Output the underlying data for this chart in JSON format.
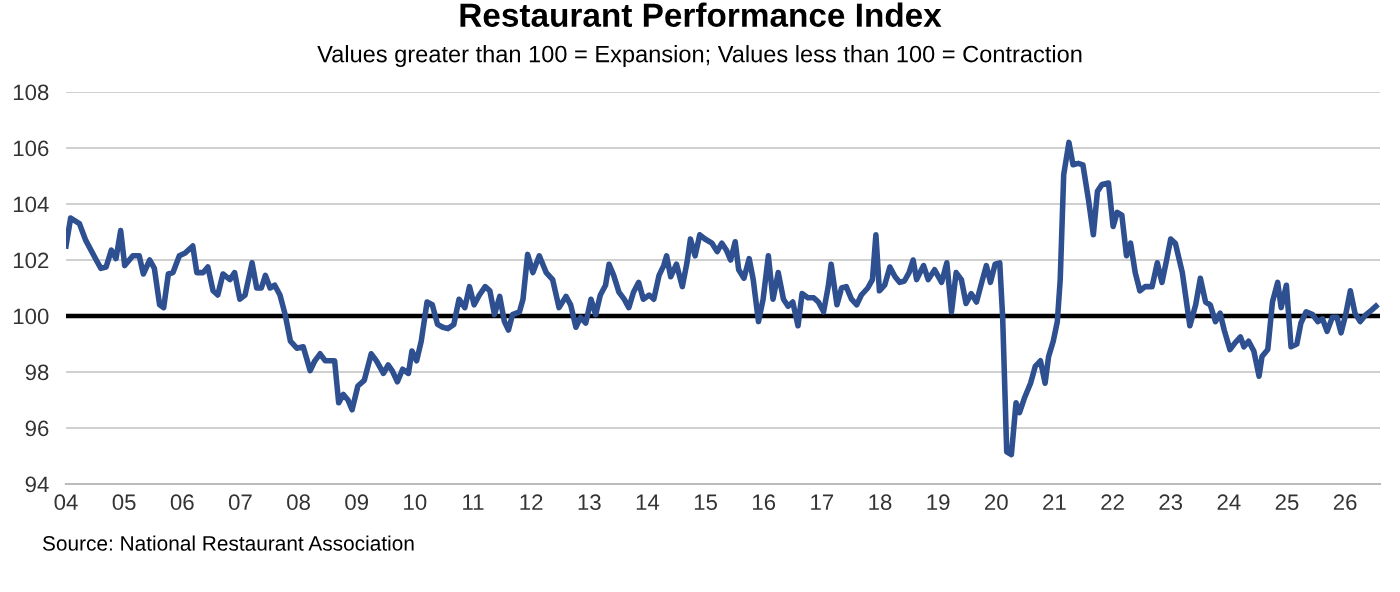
{
  "chart_data": {
    "type": "line",
    "title": "Restaurant Performance Index",
    "subtitle": "Values greater than 100 = Expansion; Values less than 100 = Contraction",
    "series": [
      {
        "color": "#2e5090",
        "x": [
          2004.0,
          2004.08,
          2004.23,
          2004.34,
          2004.52,
          2004.6,
          2004.69,
          2004.78,
          2004.86,
          2004.94,
          2005.01,
          2005.15,
          2005.26,
          2005.33,
          2005.44,
          2005.52,
          2005.61,
          2005.68,
          2005.76,
          2005.84,
          2005.95,
          2006.05,
          2006.18,
          2006.25,
          2006.36,
          2006.44,
          2006.53,
          2006.61,
          2006.7,
          2006.82,
          2006.9,
          2006.99,
          2007.08,
          2007.2,
          2007.28,
          2007.36,
          2007.43,
          2007.51,
          2007.59,
          2007.68,
          2007.77,
          2007.86,
          2007.97,
          2008.08,
          2008.2,
          2008.28,
          2008.37,
          2008.46,
          2008.55,
          2008.62,
          2008.69,
          2008.77,
          2008.85,
          2008.92,
          2009.02,
          2009.13,
          2009.25,
          2009.34,
          2009.46,
          2009.54,
          2009.61,
          2009.7,
          2009.79,
          2009.89,
          2009.95,
          2010.03,
          2010.11,
          2010.21,
          2010.3,
          2010.39,
          2010.48,
          2010.57,
          2010.67,
          2010.76,
          2010.86,
          2010.94,
          2011.02,
          2011.11,
          2011.21,
          2011.29,
          2011.37,
          2011.46,
          2011.54,
          2011.61,
          2011.68,
          2011.8,
          2011.86,
          2011.94,
          2012.03,
          2012.14,
          2012.26,
          2012.37,
          2012.48,
          2012.6,
          2012.68,
          2012.77,
          2012.85,
          2012.94,
          2013.03,
          2013.11,
          2013.19,
          2013.28,
          2013.34,
          2013.42,
          2013.51,
          2013.6,
          2013.68,
          2013.76,
          2013.85,
          2013.93,
          2014.03,
          2014.11,
          2014.2,
          2014.28,
          2014.33,
          2014.4,
          2014.5,
          2014.6,
          2014.68,
          2014.74,
          2014.82,
          2014.9,
          2014.99,
          2015.11,
          2015.2,
          2015.28,
          2015.36,
          2015.43,
          2015.51,
          2015.57,
          2015.66,
          2015.75,
          2015.82,
          2015.91,
          2015.99,
          2016.08,
          2016.16,
          2016.25,
          2016.34,
          2016.42,
          2016.5,
          2016.59,
          2016.66,
          2016.76,
          2016.86,
          2016.94,
          2017.03,
          2017.11,
          2017.16,
          2017.26,
          2017.34,
          2017.42,
          2017.51,
          2017.6,
          2017.68,
          2017.79,
          2017.87,
          2017.93,
          2017.99,
          2018.08,
          2018.17,
          2018.26,
          2018.34,
          2018.42,
          2018.5,
          2018.57,
          2018.63,
          2018.75,
          2018.83,
          2018.94,
          2019.06,
          2019.15,
          2019.23,
          2019.31,
          2019.4,
          2019.48,
          2019.57,
          2019.66,
          2019.75,
          2019.83,
          2019.9,
          2019.98,
          2020.06,
          2020.11,
          2020.18,
          2020.26,
          2020.34,
          2020.4,
          2020.49,
          2020.59,
          2020.67,
          2020.76,
          2020.84,
          2020.9,
          2020.98,
          2021.05,
          2021.1,
          2021.16,
          2021.25,
          2021.32,
          2021.41,
          2021.49,
          2021.59,
          2021.67,
          2021.74,
          2021.82,
          2021.93,
          2022.01,
          2022.08,
          2022.16,
          2022.24,
          2022.31,
          2022.39,
          2022.47,
          2022.56,
          2022.68,
          2022.77,
          2022.85,
          2022.93,
          2023.0,
          2023.08,
          2023.2,
          2023.33,
          2023.43,
          2023.51,
          2023.6,
          2023.68,
          2023.77,
          2023.85,
          2023.92,
          2024.02,
          2024.11,
          2024.2,
          2024.26,
          2024.34,
          2024.43,
          2024.52,
          2024.57,
          2024.67,
          2024.75,
          2024.84,
          2024.9,
          2024.99,
          2025.07,
          2025.17,
          2025.24,
          2025.33,
          2025.44,
          2025.53,
          2025.61,
          2025.69,
          2025.78,
          2025.86,
          2025.93,
          2026.01,
          2026.09,
          2026.17,
          2026.26,
          2026.36,
          2026.45,
          2026.53
        ],
        "values": [
          102.5,
          103.5,
          103.3,
          102.7,
          102.0,
          101.7,
          101.75,
          102.35,
          102.05,
          103.05,
          101.8,
          102.15,
          102.15,
          101.5,
          102.0,
          101.7,
          100.4,
          100.3,
          101.5,
          101.55,
          102.15,
          102.25,
          102.5,
          101.55,
          101.55,
          101.75,
          100.9,
          100.75,
          101.5,
          101.3,
          101.55,
          100.6,
          100.75,
          101.9,
          101.0,
          101.0,
          101.45,
          101.0,
          101.1,
          100.75,
          100.05,
          99.1,
          98.85,
          98.9,
          98.05,
          98.4,
          98.65,
          98.4,
          98.4,
          98.4,
          96.9,
          97.2,
          97.0,
          96.65,
          97.5,
          97.7,
          98.65,
          98.4,
          97.95,
          98.25,
          98.05,
          97.65,
          98.1,
          97.95,
          98.75,
          98.4,
          99.1,
          100.5,
          100.4,
          99.7,
          99.6,
          99.55,
          99.7,
          100.6,
          100.3,
          101.05,
          100.4,
          100.75,
          101.05,
          100.9,
          100.05,
          100.7,
          99.8,
          99.5,
          100.05,
          100.15,
          100.6,
          102.2,
          101.55,
          102.15,
          101.55,
          101.3,
          100.3,
          100.7,
          100.4,
          99.6,
          99.95,
          99.75,
          100.6,
          100.05,
          100.75,
          101.1,
          101.85,
          101.45,
          100.85,
          100.6,
          100.3,
          100.85,
          101.2,
          100.6,
          100.75,
          100.6,
          101.45,
          101.8,
          102.15,
          101.4,
          101.85,
          101.05,
          101.9,
          102.75,
          102.15,
          102.9,
          102.75,
          102.6,
          102.3,
          102.6,
          102.35,
          102.0,
          102.65,
          101.65,
          101.35,
          102.05,
          101.3,
          99.8,
          100.6,
          102.15,
          100.6,
          101.55,
          100.6,
          100.35,
          100.5,
          99.65,
          100.8,
          100.65,
          100.65,
          100.5,
          100.15,
          101.05,
          101.85,
          100.4,
          101.0,
          101.05,
          100.6,
          100.4,
          100.75,
          101.0,
          101.3,
          102.9,
          100.9,
          101.1,
          101.75,
          101.4,
          101.2,
          101.25,
          101.55,
          102.0,
          101.3,
          101.8,
          101.3,
          101.65,
          101.2,
          101.9,
          100.15,
          101.55,
          101.3,
          100.45,
          100.8,
          100.5,
          101.2,
          101.8,
          101.2,
          101.85,
          101.9,
          99.95,
          95.15,
          95.05,
          96.9,
          96.55,
          97.1,
          97.6,
          98.2,
          98.4,
          97.6,
          98.55,
          99.1,
          99.8,
          101.3,
          105.05,
          106.2,
          105.4,
          105.45,
          105.4,
          104.1,
          102.9,
          104.45,
          104.7,
          104.75,
          103.2,
          103.7,
          103.6,
          102.15,
          102.6,
          101.55,
          100.9,
          101.05,
          101.05,
          101.9,
          101.2,
          102.0,
          102.75,
          102.6,
          101.55,
          99.65,
          100.4,
          101.35,
          100.5,
          100.4,
          99.8,
          100.1,
          99.5,
          98.8,
          99.05,
          99.25,
          98.9,
          99.1,
          98.75,
          97.85,
          98.55,
          98.8,
          100.5,
          101.2,
          100.3,
          101.1,
          98.9,
          99.0,
          99.75,
          100.15,
          100.05,
          99.8,
          99.9,
          99.45,
          99.95,
          99.95,
          99.4,
          100.05,
          100.9,
          100.1,
          99.8,
          100.05,
          100.2,
          100.35
        ]
      }
    ],
    "xlim": [
      2004,
      2026.6
    ],
    "xticks": [
      {
        "value": 2004,
        "label": "04"
      },
      {
        "value": 2005,
        "label": "05"
      },
      {
        "value": 2006,
        "label": "06"
      },
      {
        "value": 2007,
        "label": "07"
      },
      {
        "value": 2008,
        "label": "08"
      },
      {
        "value": 2009,
        "label": "09"
      },
      {
        "value": 2010,
        "label": "10"
      },
      {
        "value": 2011,
        "label": "11"
      },
      {
        "value": 2012,
        "label": "12"
      },
      {
        "value": 2013,
        "label": "13"
      },
      {
        "value": 2014,
        "label": "14"
      },
      {
        "value": 2015,
        "label": "15"
      },
      {
        "value": 2016,
        "label": "16"
      },
      {
        "value": 2017,
        "label": "17"
      },
      {
        "value": 2018,
        "label": "18"
      },
      {
        "value": 2019,
        "label": "19"
      },
      {
        "value": 2020,
        "label": "20"
      },
      {
        "value": 2021,
        "label": "21"
      },
      {
        "value": 2022,
        "label": "22"
      },
      {
        "value": 2023,
        "label": "23"
      },
      {
        "value": 2024,
        "label": "24"
      },
      {
        "value": 2025,
        "label": "25"
      },
      {
        "value": 2026,
        "label": "26"
      }
    ],
    "ylim": [
      94,
      108
    ],
    "yticks": [
      94,
      96,
      98,
      100,
      102,
      104,
      106,
      108
    ],
    "ref_lines": [
      {
        "axis": "y",
        "value": 100,
        "color": "#000000"
      }
    ],
    "grid": "y",
    "legend": false,
    "marker": "none",
    "line_style": "solid",
    "annotations": [
      "Source: National Restaurant Association"
    ]
  }
}
